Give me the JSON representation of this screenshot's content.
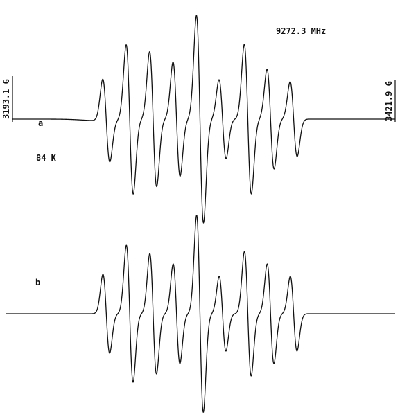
{
  "chart_data": {
    "type": "line",
    "title": "",
    "xlabel": "",
    "ylabel": "",
    "annotations": {
      "frequency": "9272.3 MHz",
      "field_start": "3193.1 G",
      "field_end": "3421.9 G",
      "temperature": "84 K"
    },
    "xlim": [
      3193.1,
      3421.9
    ],
    "series": [
      {
        "name": "a",
        "line_count": 9,
        "center": 3305.2,
        "spacing": 14.0,
        "linewidth": 2.1,
        "intensities": [
          0.4,
          0.72,
          0.65,
          0.55,
          1.0,
          0.38,
          0.72,
          0.48,
          0.36
        ],
        "offsets": [
          0,
          0,
          0,
          0,
          0,
          -0.5,
          0.6,
          0.2,
          0
        ],
        "baseline_dip": {
          "center": 3245,
          "width": 10,
          "depth": 0.015
        }
      },
      {
        "name": "b",
        "line_count": 9,
        "center": 3305.2,
        "spacing": 14.0,
        "linewidth": 2.0,
        "intensities": [
          0.38,
          0.66,
          0.58,
          0.48,
          0.95,
          0.36,
          0.6,
          0.48,
          0.36
        ],
        "offsets": [
          0,
          0,
          0,
          0,
          0,
          -0.5,
          0.6,
          0.2,
          0
        ]
      }
    ]
  }
}
